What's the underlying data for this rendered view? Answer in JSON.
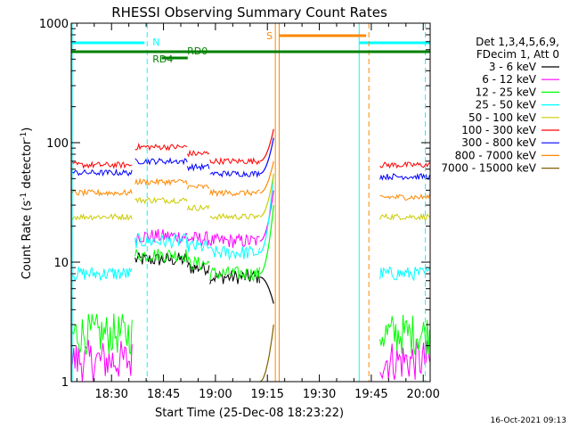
{
  "chart_data": {
    "type": "line",
    "title": "RHESSI Observing Summary Count Rates",
    "xlabel": "Start Time (25-Dec-08 18:23:22)",
    "ylabel_main": "Count Rate (s",
    "ylabel_sup1": "-1",
    "ylabel_mid": " detector",
    "ylabel_sup2": "-1",
    "ylabel_end": ")",
    "y_scale": "log",
    "ylim": [
      1,
      1000
    ],
    "xlim_minutes": [
      18.37,
      122.0
    ],
    "x_tick_labels": [
      "18:30",
      "18:45",
      "19:00",
      "19:15",
      "19:30",
      "19:45",
      "20:00"
    ],
    "x_tick_minutes": [
      30,
      45,
      60,
      75,
      90,
      105,
      120
    ],
    "y_tick_labels": [
      "1",
      "10",
      "100",
      "1000"
    ],
    "y_tick_values": [
      1,
      10,
      100,
      1000
    ],
    "legend": {
      "header1": "Det 1,3,4,5,6,9,",
      "header2": "FDecim 1, Att 0"
    },
    "timestamp": "16-Oct-2021 09:13",
    "series": [
      {
        "name": "3 - 6 keV",
        "color": "#000000",
        "pre": null,
        "seg1": 10.5,
        "seg2": 7.5,
        "peak": 4.5,
        "post": null
      },
      {
        "name": "6 - 12 keV",
        "color": "#ff00ff",
        "pre": 1.5,
        "seg1": 16.5,
        "seg2": 15,
        "peak": 40,
        "post": 1.5
      },
      {
        "name": "12 - 25 keV",
        "color": "#00ff00",
        "pre": 2.5,
        "seg1": 11.5,
        "seg2": 8,
        "peak": 30,
        "post": 2.5
      },
      {
        "name": "25 - 50 keV",
        "color": "#00ffff",
        "pre": 8,
        "seg1": 15,
        "seg2": 12,
        "peak": 55,
        "post": 8
      },
      {
        "name": "50 - 100 keV",
        "color": "#cccc00",
        "pre": 24,
        "seg1": 33,
        "seg2": 24,
        "peak": 55,
        "post": 24
      },
      {
        "name": "100 - 300 keV",
        "color": "#ff0000",
        "pre": 65,
        "seg1": 92,
        "seg2": 70,
        "peak": 130,
        "post": 65
      },
      {
        "name": "300 - 800 keV",
        "color": "#0000ff",
        "pre": 56,
        "seg1": 70,
        "seg2": 55,
        "peak": 110,
        "post": 52
      },
      {
        "name": "800 - 7000 keV",
        "color": "#ff8800",
        "pre": 38,
        "seg1": 47,
        "seg2": 38,
        "peak": 70,
        "post": 35
      },
      {
        "name": "7000 - 15000 keV",
        "color": "#806000",
        "pre": null,
        "seg1": null,
        "seg2": null,
        "peak": 3,
        "post": null
      }
    ],
    "intervals": {
      "night_label": "N",
      "saa_label": "S",
      "rd4_label": "RD4",
      "rd0_label": "RD0"
    }
  }
}
